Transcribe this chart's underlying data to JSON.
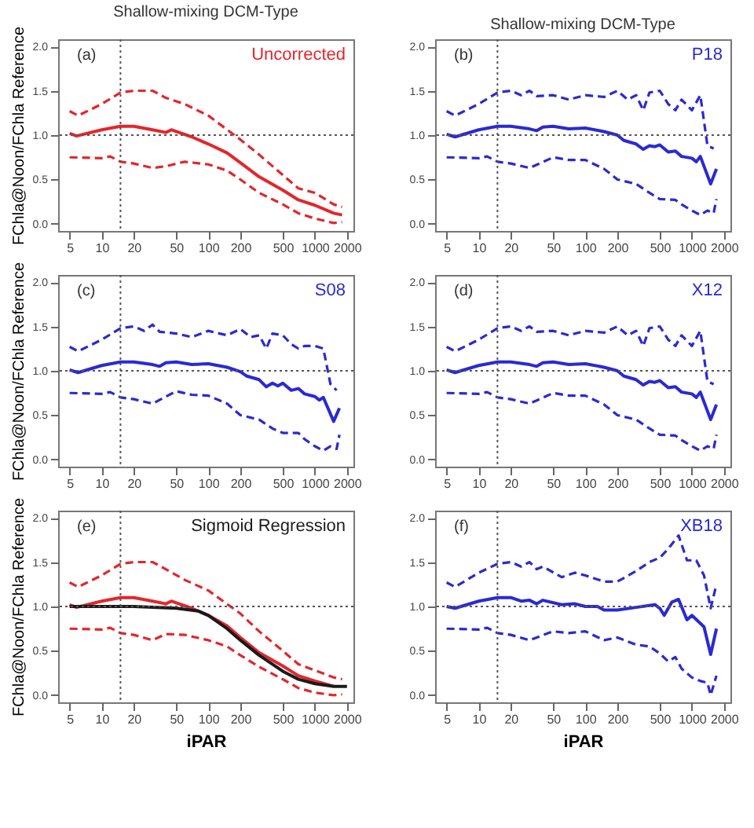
{
  "chart_data": [
    {
      "type": "line",
      "title": "Shallow-mixing DCM-Type",
      "ylabel": "FChla@Noon/FChla Reference",
      "annotations": [
        "(a)"
      ],
      "xlim": [
        3.9,
        2300
      ],
      "ylim": [
        -0.08,
        2.08
      ],
      "log": "x",
      "xticks": [
        5,
        10,
        20,
        50,
        100,
        200,
        500,
        1000,
        2000
      ],
      "yticks": [
        {
          "value": 0,
          "label": "0.0"
        },
        {
          "value": 0.5,
          "label": "0.5"
        },
        {
          "value": 1,
          "label": "1.0"
        },
        {
          "value": 1.5,
          "label": "1.5"
        },
        {
          "value": 2,
          "label": "2.0"
        }
      ],
      "ref_lines": [
        {
          "axis": "x",
          "value": 15,
          "color": "#555555",
          "line_style": "dotted"
        },
        {
          "axis": "y",
          "value": 1,
          "color": "#555555",
          "line_style": "dotted"
        }
      ],
      "series": [
        {
          "name": "Uncorrected",
          "color": "#e3262b",
          "line_style": "solid",
          "x": [
            5,
            5.8,
            10,
            15,
            20,
            30,
            40,
            45,
            50,
            70,
            100,
            150,
            200,
            300,
            500,
            700,
            1000,
            1500,
            1800
          ],
          "values": [
            1.02,
            0.99,
            1.06,
            1.1,
            1.1,
            1.06,
            1.03,
            1.06,
            1.04,
            0.98,
            0.9,
            0.8,
            0.69,
            0.53,
            0.38,
            0.27,
            0.21,
            0.12,
            0.1
          ]
        },
        {
          "color": "#e3262b",
          "line_style": "dashed",
          "x": [
            5,
            6,
            10,
            15,
            20,
            30,
            40,
            60,
            100,
            200,
            300,
            500,
            700,
            1000,
            1500,
            1800
          ],
          "values": [
            1.27,
            1.22,
            1.35,
            1.48,
            1.5,
            1.5,
            1.42,
            1.35,
            1.22,
            0.95,
            0.78,
            0.55,
            0.4,
            0.35,
            0.22,
            0.19
          ]
        },
        {
          "color": "#e3262b",
          "line_style": "dashed",
          "x": [
            5,
            10,
            12,
            15,
            20,
            30,
            40,
            60,
            100,
            150,
            200,
            300,
            500,
            700,
            1000,
            1500,
            1800
          ],
          "values": [
            0.75,
            0.74,
            0.76,
            0.7,
            0.68,
            0.63,
            0.65,
            0.7,
            0.67,
            0.6,
            0.5,
            0.35,
            0.22,
            0.12,
            0.06,
            0.01,
            0.02
          ]
        }
      ]
    },
    {
      "type": "line",
      "title": "Shallow-mixing DCM-Type",
      "annotations": [
        "(b)"
      ],
      "xlim": [
        3.9,
        2300
      ],
      "ylim": [
        -0.08,
        2.08
      ],
      "log": "x",
      "xticks": [
        5,
        10,
        20,
        50,
        100,
        200,
        500,
        1000,
        2000
      ],
      "yticks": [
        {
          "value": 0,
          "label": "0.0"
        },
        {
          "value": 0.5,
          "label": "0.5"
        },
        {
          "value": 1,
          "label": "1.0"
        },
        {
          "value": 1.5,
          "label": "1.5"
        },
        {
          "value": 2,
          "label": "2.0"
        }
      ],
      "ref_lines": [
        {
          "axis": "x",
          "value": 15,
          "color": "#555555",
          "line_style": "dotted"
        },
        {
          "axis": "y",
          "value": 1,
          "color": "#555555",
          "line_style": "dotted"
        }
      ],
      "series": [
        {
          "name": "P18",
          "color": "#2a2ad2",
          "line_style": "solid",
          "x": [
            5,
            6,
            10,
            15,
            20,
            30,
            35,
            40,
            50,
            70,
            100,
            150,
            200,
            230,
            300,
            350,
            400,
            450,
            500,
            600,
            700,
            800,
            1000,
            1100,
            1200,
            1500,
            1700
          ],
          "values": [
            1.01,
            0.98,
            1.06,
            1.1,
            1.1,
            1.07,
            1.05,
            1.09,
            1.1,
            1.07,
            1.08,
            1.04,
            1.0,
            0.94,
            0.9,
            0.84,
            0.88,
            0.87,
            0.89,
            0.81,
            0.82,
            0.76,
            0.74,
            0.7,
            0.76,
            0.45,
            0.62
          ]
        },
        {
          "color": "#2a2ad2",
          "line_style": "dashed",
          "x": [
            5,
            6,
            10,
            15,
            20,
            25,
            30,
            35,
            50,
            70,
            100,
            150,
            200,
            250,
            300,
            350,
            400,
            500,
            600,
            700,
            800,
            1000,
            1200,
            1400,
            1600
          ],
          "values": [
            1.27,
            1.22,
            1.35,
            1.48,
            1.5,
            1.45,
            1.5,
            1.44,
            1.45,
            1.4,
            1.45,
            1.43,
            1.5,
            1.4,
            1.45,
            1.28,
            1.48,
            1.5,
            1.35,
            1.28,
            1.4,
            1.28,
            1.45,
            0.88,
            0.85
          ]
        },
        {
          "color": "#2a2ad2",
          "line_style": "dashed",
          "x": [
            5,
            10,
            12,
            15,
            20,
            30,
            50,
            70,
            100,
            150,
            200,
            300,
            400,
            500,
            700,
            800,
            1000,
            1200,
            1400,
            1600,
            1700
          ],
          "values": [
            0.75,
            0.74,
            0.76,
            0.7,
            0.68,
            0.63,
            0.75,
            0.72,
            0.72,
            0.62,
            0.5,
            0.45,
            0.35,
            0.28,
            0.27,
            0.22,
            0.15,
            0.1,
            0.15,
            0.12,
            0.28
          ]
        }
      ]
    },
    {
      "type": "line",
      "ylabel": "FChla@Noon/FChla Reference",
      "annotations": [
        "(c)"
      ],
      "xlim": [
        3.9,
        2300
      ],
      "ylim": [
        -0.08,
        2.08
      ],
      "log": "x",
      "xticks": [
        5,
        10,
        20,
        50,
        100,
        200,
        500,
        1000,
        2000
      ],
      "yticks": [
        {
          "value": 0,
          "label": "0.0"
        },
        {
          "value": 0.5,
          "label": "0.5"
        },
        {
          "value": 1,
          "label": "1.0"
        },
        {
          "value": 1.5,
          "label": "1.5"
        },
        {
          "value": 2,
          "label": "2.0"
        }
      ],
      "ref_lines": [
        {
          "axis": "x",
          "value": 15,
          "color": "#555555",
          "line_style": "dotted"
        },
        {
          "axis": "y",
          "value": 1,
          "color": "#555555",
          "line_style": "dotted"
        }
      ],
      "series": [
        {
          "name": "S08",
          "color": "#2a2ad2",
          "line_style": "solid",
          "x": [
            5,
            6,
            10,
            15,
            20,
            30,
            35,
            40,
            50,
            70,
            100,
            150,
            200,
            230,
            300,
            350,
            400,
            450,
            500,
            600,
            700,
            800,
            1000,
            1100,
            1200,
            1500,
            1700
          ],
          "values": [
            1.01,
            0.98,
            1.06,
            1.1,
            1.1,
            1.07,
            1.05,
            1.09,
            1.1,
            1.07,
            1.08,
            1.04,
            0.99,
            0.94,
            0.9,
            0.82,
            0.86,
            0.83,
            0.86,
            0.78,
            0.8,
            0.74,
            0.71,
            0.67,
            0.7,
            0.43,
            0.58
          ]
        },
        {
          "color": "#2a2ad2",
          "line_style": "dashed",
          "x": [
            5,
            6,
            10,
            15,
            20,
            25,
            30,
            35,
            50,
            70,
            100,
            150,
            200,
            250,
            300,
            350,
            400,
            500,
            600,
            700,
            800,
            1000,
            1200,
            1400,
            1600
          ],
          "values": [
            1.27,
            1.22,
            1.35,
            1.48,
            1.5,
            1.45,
            1.52,
            1.44,
            1.42,
            1.38,
            1.45,
            1.4,
            1.47,
            1.38,
            1.4,
            1.25,
            1.42,
            1.4,
            1.3,
            1.25,
            1.28,
            1.28,
            1.25,
            0.85,
            0.78
          ]
        },
        {
          "color": "#2a2ad2",
          "line_style": "dashed",
          "x": [
            5,
            10,
            12,
            15,
            20,
            30,
            50,
            70,
            100,
            150,
            200,
            300,
            400,
            500,
            700,
            800,
            1000,
            1200,
            1400,
            1600,
            1700
          ],
          "values": [
            0.75,
            0.74,
            0.76,
            0.7,
            0.68,
            0.63,
            0.77,
            0.73,
            0.72,
            0.63,
            0.5,
            0.45,
            0.35,
            0.3,
            0.3,
            0.23,
            0.15,
            0.1,
            0.15,
            0.12,
            0.28
          ]
        }
      ]
    },
    {
      "type": "line",
      "annotations": [
        "(d)"
      ],
      "xlim": [
        3.9,
        2300
      ],
      "ylim": [
        -0.08,
        2.08
      ],
      "log": "x",
      "xticks": [
        5,
        10,
        20,
        50,
        100,
        200,
        500,
        1000,
        2000
      ],
      "yticks": [
        {
          "value": 0,
          "label": "0.0"
        },
        {
          "value": 0.5,
          "label": "0.5"
        },
        {
          "value": 1,
          "label": "1.0"
        },
        {
          "value": 1.5,
          "label": "1.5"
        },
        {
          "value": 2,
          "label": "2.0"
        }
      ],
      "ref_lines": [
        {
          "axis": "x",
          "value": 15,
          "color": "#555555",
          "line_style": "dotted"
        },
        {
          "axis": "y",
          "value": 1,
          "color": "#555555",
          "line_style": "dotted"
        }
      ],
      "series": [
        {
          "name": "X12",
          "color": "#2a2ad2",
          "line_style": "solid",
          "x": [
            5,
            6,
            10,
            15,
            20,
            30,
            35,
            40,
            50,
            70,
            100,
            150,
            200,
            230,
            300,
            350,
            400,
            450,
            500,
            600,
            700,
            800,
            1000,
            1100,
            1200,
            1500,
            1700
          ],
          "values": [
            1.01,
            0.98,
            1.06,
            1.1,
            1.1,
            1.07,
            1.05,
            1.09,
            1.1,
            1.07,
            1.08,
            1.04,
            1.0,
            0.94,
            0.9,
            0.84,
            0.88,
            0.87,
            0.89,
            0.81,
            0.82,
            0.76,
            0.74,
            0.7,
            0.76,
            0.45,
            0.62
          ]
        },
        {
          "color": "#2a2ad2",
          "line_style": "dashed",
          "x": [
            5,
            6,
            10,
            15,
            20,
            25,
            30,
            35,
            50,
            70,
            100,
            150,
            200,
            250,
            300,
            350,
            400,
            500,
            600,
            700,
            800,
            1000,
            1200,
            1400,
            1600
          ],
          "values": [
            1.27,
            1.22,
            1.35,
            1.48,
            1.5,
            1.45,
            1.5,
            1.44,
            1.45,
            1.4,
            1.45,
            1.43,
            1.5,
            1.4,
            1.45,
            1.28,
            1.48,
            1.5,
            1.35,
            1.28,
            1.4,
            1.28,
            1.45,
            0.88,
            0.85
          ]
        },
        {
          "color": "#2a2ad2",
          "line_style": "dashed",
          "x": [
            5,
            10,
            12,
            15,
            20,
            30,
            50,
            70,
            100,
            150,
            200,
            300,
            400,
            500,
            700,
            800,
            1000,
            1200,
            1400,
            1600,
            1700
          ],
          "values": [
            0.75,
            0.74,
            0.76,
            0.7,
            0.68,
            0.63,
            0.75,
            0.72,
            0.72,
            0.62,
            0.5,
            0.45,
            0.35,
            0.28,
            0.27,
            0.22,
            0.15,
            0.1,
            0.15,
            0.12,
            0.28
          ]
        }
      ]
    },
    {
      "type": "line",
      "xlabel": "iPAR",
      "ylabel": "FChla@Noon/FChla Reference",
      "annotations": [
        "(e)"
      ],
      "xlim": [
        3.9,
        2300
      ],
      "ylim": [
        -0.08,
        2.08
      ],
      "log": "x",
      "xticks": [
        5,
        10,
        20,
        50,
        100,
        200,
        500,
        1000,
        2000
      ],
      "yticks": [
        {
          "value": 0,
          "label": "0.0"
        },
        {
          "value": 0.5,
          "label": "0.5"
        },
        {
          "value": 1,
          "label": "1.0"
        },
        {
          "value": 1.5,
          "label": "1.5"
        },
        {
          "value": 2,
          "label": "2.0"
        }
      ],
      "ref_lines": [
        {
          "axis": "x",
          "value": 15,
          "color": "#555555",
          "line_style": "dotted"
        },
        {
          "axis": "y",
          "value": 1,
          "color": "#555555",
          "line_style": "dotted"
        }
      ],
      "series": [
        {
          "color": "#e3262b",
          "line_style": "solid",
          "x": [
            5,
            5.8,
            10,
            15,
            20,
            30,
            40,
            45,
            50,
            70,
            100,
            150,
            200,
            300,
            500,
            700,
            1000,
            1500
          ],
          "values": [
            1.02,
            0.99,
            1.06,
            1.1,
            1.1,
            1.06,
            1.03,
            1.06,
            1.04,
            0.98,
            0.9,
            0.78,
            0.65,
            0.48,
            0.33,
            0.22,
            0.16,
            0.1
          ]
        },
        {
          "color": "#e3262b",
          "line_style": "dashed",
          "x": [
            5,
            6,
            10,
            15,
            20,
            30,
            40,
            60,
            100,
            200,
            300,
            500,
            700,
            1000,
            1500,
            1800
          ],
          "values": [
            1.27,
            1.22,
            1.35,
            1.48,
            1.5,
            1.5,
            1.42,
            1.3,
            1.18,
            0.92,
            0.72,
            0.5,
            0.35,
            0.28,
            0.2,
            0.18
          ]
        },
        {
          "color": "#e3262b",
          "line_style": "dashed",
          "x": [
            5,
            10,
            12,
            15,
            20,
            30,
            40,
            60,
            100,
            150,
            200,
            300,
            500,
            700,
            1000,
            1500,
            1800
          ],
          "values": [
            0.75,
            0.74,
            0.76,
            0.7,
            0.68,
            0.62,
            0.69,
            0.68,
            0.62,
            0.55,
            0.45,
            0.32,
            0.18,
            0.08,
            0.03,
            0.0,
            0.01
          ]
        },
        {
          "name": "Sigmoid Regression",
          "color": "#1a1a1a",
          "line_style": "solid",
          "x": [
            5,
            20,
            50,
            80,
            100,
            150,
            200,
            300,
            500,
            700,
            1000,
            1500,
            2000
          ],
          "values": [
            1.0,
            1.0,
            0.98,
            0.95,
            0.9,
            0.75,
            0.62,
            0.45,
            0.27,
            0.18,
            0.13,
            0.1,
            0.1
          ]
        }
      ]
    },
    {
      "type": "line",
      "xlabel": "iPAR",
      "annotations": [
        "(f)"
      ],
      "xlim": [
        3.9,
        2300
      ],
      "ylim": [
        -0.08,
        2.08
      ],
      "log": "x",
      "xticks": [
        5,
        10,
        20,
        50,
        100,
        200,
        500,
        1000,
        2000
      ],
      "yticks": [
        {
          "value": 0,
          "label": "0.0"
        },
        {
          "value": 0.5,
          "label": "0.5"
        },
        {
          "value": 1,
          "label": "1.0"
        },
        {
          "value": 1.5,
          "label": "1.5"
        },
        {
          "value": 2,
          "label": "2.0"
        }
      ],
      "ref_lines": [
        {
          "axis": "x",
          "value": 15,
          "color": "#555555",
          "line_style": "dotted"
        },
        {
          "axis": "y",
          "value": 1,
          "color": "#555555",
          "line_style": "dotted"
        }
      ],
      "series": [
        {
          "name": "XB18",
          "color": "#2a2ad2",
          "line_style": "solid",
          "x": [
            5,
            6,
            10,
            15,
            20,
            25,
            30,
            35,
            40,
            60,
            80,
            100,
            130,
            150,
            200,
            300,
            450,
            500,
            550,
            650,
            750,
            900,
            1000,
            1300,
            1500,
            1700
          ],
          "values": [
            1.0,
            0.98,
            1.06,
            1.1,
            1.1,
            1.06,
            1.07,
            1.03,
            1.07,
            1.02,
            1.03,
            1.0,
            1.0,
            0.96,
            0.96,
            0.99,
            1.02,
            0.98,
            0.9,
            1.05,
            1.08,
            0.85,
            0.9,
            0.77,
            0.46,
            0.75
          ]
        },
        {
          "color": "#2a2ad2",
          "line_style": "dashed",
          "x": [
            5,
            6,
            10,
            15,
            20,
            25,
            30,
            35,
            40,
            60,
            80,
            100,
            150,
            200,
            300,
            400,
            500,
            600,
            750,
            900,
            1100,
            1300,
            1500,
            1700
          ],
          "values": [
            1.27,
            1.22,
            1.38,
            1.48,
            1.5,
            1.45,
            1.5,
            1.42,
            1.45,
            1.33,
            1.38,
            1.35,
            1.28,
            1.28,
            1.4,
            1.5,
            1.55,
            1.65,
            1.8,
            1.52,
            1.52,
            1.35,
            0.98,
            1.25
          ]
        },
        {
          "color": "#2a2ad2",
          "line_style": "dashed",
          "x": [
            5,
            10,
            12,
            15,
            20,
            30,
            50,
            70,
            100,
            150,
            200,
            300,
            400,
            500,
            600,
            700,
            800,
            1000,
            1200,
            1400,
            1500,
            1700
          ],
          "values": [
            0.75,
            0.74,
            0.76,
            0.7,
            0.68,
            0.62,
            0.72,
            0.7,
            0.72,
            0.62,
            0.65,
            0.57,
            0.55,
            0.47,
            0.38,
            0.43,
            0.3,
            0.2,
            0.16,
            0.14,
            0.0,
            0.22
          ]
        }
      ]
    }
  ]
}
